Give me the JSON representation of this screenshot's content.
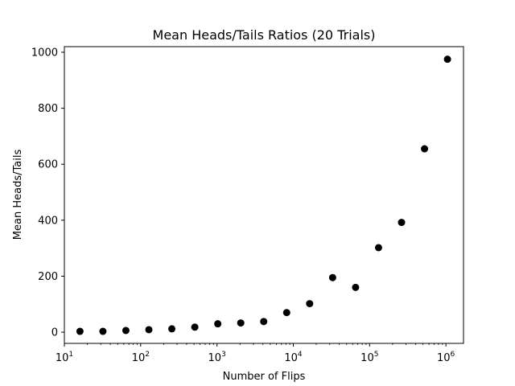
{
  "chart_data": {
    "type": "scatter",
    "title": "Mean Heads/Tails Ratios (20 Trials)",
    "xlabel": "Number of Flips",
    "ylabel": "Mean Heads/Tails",
    "x_scale": "log",
    "xlim": [
      10,
      1700000
    ],
    "ylim": [
      -40,
      1020
    ],
    "grid": false,
    "marker_color": "#000000",
    "x_ticks": [
      {
        "value": 10,
        "base": "10",
        "exp": "1"
      },
      {
        "value": 100,
        "base": "10",
        "exp": "2"
      },
      {
        "value": 1000,
        "base": "10",
        "exp": "3"
      },
      {
        "value": 10000,
        "base": "10",
        "exp": "4"
      },
      {
        "value": 100000,
        "base": "10",
        "exp": "5"
      },
      {
        "value": 1000000,
        "base": "10",
        "exp": "6"
      }
    ],
    "y_ticks": [
      {
        "value": 0,
        "label": "0"
      },
      {
        "value": 200,
        "label": "200"
      },
      {
        "value": 400,
        "label": "400"
      },
      {
        "value": 600,
        "label": "600"
      },
      {
        "value": 800,
        "label": "800"
      },
      {
        "value": 1000,
        "label": "1000"
      }
    ],
    "points": [
      {
        "x": 16,
        "y": 3
      },
      {
        "x": 32,
        "y": 3
      },
      {
        "x": 64,
        "y": 6
      },
      {
        "x": 128,
        "y": 9
      },
      {
        "x": 256,
        "y": 12
      },
      {
        "x": 512,
        "y": 18
      },
      {
        "x": 1024,
        "y": 30
      },
      {
        "x": 2048,
        "y": 33
      },
      {
        "x": 4096,
        "y": 38
      },
      {
        "x": 8192,
        "y": 70
      },
      {
        "x": 16384,
        "y": 102
      },
      {
        "x": 32768,
        "y": 195
      },
      {
        "x": 65536,
        "y": 160
      },
      {
        "x": 131072,
        "y": 302
      },
      {
        "x": 262144,
        "y": 392
      },
      {
        "x": 524288,
        "y": 655
      },
      {
        "x": 1048576,
        "y": 975
      }
    ]
  }
}
